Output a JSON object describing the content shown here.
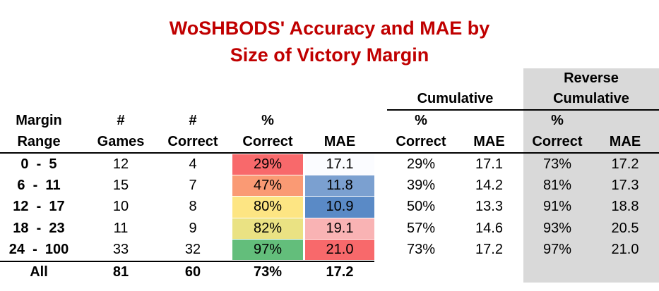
{
  "title_line1": "WoSHBODS' Accuracy and MAE by",
  "title_line2": "Size of Victory Margin",
  "headers": {
    "cumulative": "Cumulative",
    "reverse_line1": "Reverse",
    "reverse_line2": "Cumulative",
    "margin_line1": "Margin",
    "margin_line2": "Range",
    "games_line1": "#",
    "games_line2": "Games",
    "correct_line1": "#",
    "correct_line2": "Correct",
    "pct_line1": "%",
    "pct_line2": "Correct",
    "mae": "MAE",
    "cum_pct_line1": "%",
    "cum_pct_line2": "Correct",
    "cum_mae": "MAE",
    "rev_pct_line1": "%",
    "rev_pct_line2": "Correct",
    "rev_mae": "MAE"
  },
  "colors": {
    "title": "#c00000",
    "reverse_bg": "#d9d9d9"
  },
  "rows": [
    {
      "range": "0  -  5",
      "games": "12",
      "correct": "4",
      "pct": "29%",
      "mae": "17.1",
      "cum_pct": "29%",
      "cum_mae": "17.1",
      "rev_pct": "73%",
      "rev_mae": "17.2",
      "pct_color": "#f8696b",
      "mae_color": "#fbfcff"
    },
    {
      "range": "6  -  11",
      "games": "15",
      "correct": "7",
      "pct": "47%",
      "mae": "11.8",
      "cum_pct": "39%",
      "cum_mae": "14.2",
      "rev_pct": "81%",
      "rev_mae": "17.3",
      "pct_color": "#fa9a74",
      "mae_color": "#7ba0d0"
    },
    {
      "range": "12  -  17",
      "games": "10",
      "correct": "8",
      "pct": "80%",
      "mae": "10.9",
      "cum_pct": "50%",
      "cum_mae": "13.3",
      "rev_pct": "91%",
      "rev_mae": "18.8",
      "pct_color": "#fde583",
      "mae_color": "#5a8ac6"
    },
    {
      "range": "18  -  23",
      "games": "11",
      "correct": "9",
      "pct": "82%",
      "mae": "19.1",
      "cum_pct": "57%",
      "cum_mae": "14.6",
      "rev_pct": "93%",
      "rev_mae": "20.5",
      "pct_color": "#eae283",
      "mae_color": "#f9b3b4"
    },
    {
      "range": "24  -  100",
      "games": "33",
      "correct": "32",
      "pct": "97%",
      "mae": "21.0",
      "cum_pct": "73%",
      "cum_mae": "17.2",
      "rev_pct": "97%",
      "rev_mae": "21.0",
      "pct_color": "#63be7b",
      "mae_color": "#f8696b"
    }
  ],
  "totals": {
    "label": "All",
    "games": "81",
    "correct": "60",
    "pct": "73%",
    "mae": "17.2"
  }
}
